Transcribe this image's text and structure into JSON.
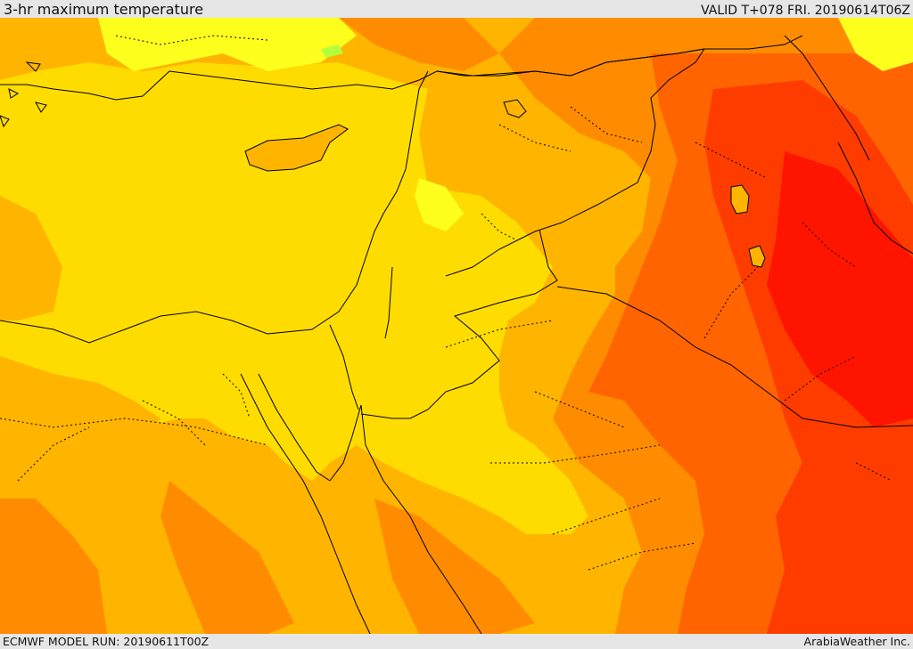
{
  "header": {
    "title": "3-hr maximum temperature",
    "valid": "VALID T+078 FRI. 20190614T06Z"
  },
  "footer": {
    "model_run": "ECMWF MODEL RUN: 20190611T00Z",
    "credit": "ArabiaWeather Inc."
  },
  "map": {
    "field": "3-hr maximum temperature",
    "palette": {
      "light_yellow": "#ffff1e",
      "yellow": "#ffdc00",
      "light_orange": "#ffb400",
      "orange": "#ff8c00",
      "dark_orange": "#ff6400",
      "red_orange": "#ff3c00",
      "red": "#ff1400",
      "green_spot": "#b4ff3c"
    },
    "line_colors": {
      "coastline": "#000000",
      "border": "#000000",
      "province": "#000000"
    }
  }
}
